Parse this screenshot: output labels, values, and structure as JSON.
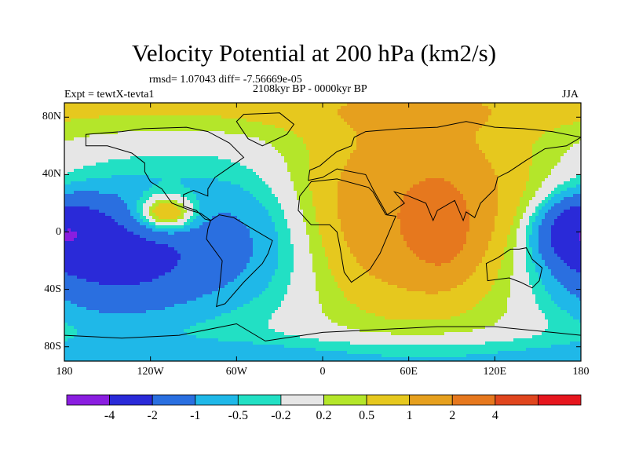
{
  "chart_data": {
    "type": "heatmap",
    "title": "Velocity Potential at 200 hPa (km2/s)",
    "stats_text": "rmsd= 1.07043 diff= -7.56669e-05",
    "period_text": "2108kyr BP - 0000kyr BP",
    "experiment_text": "Expt = tewtX-tevta1",
    "season": "JJA",
    "x_ticks": [
      "180",
      "120W",
      "60W",
      "0",
      "60E",
      "120E",
      "180"
    ],
    "x_tick_values": [
      -180,
      -120,
      -60,
      0,
      60,
      120,
      180
    ],
    "y_ticks": [
      "80N",
      "40N",
      "0",
      "40S",
      "80S"
    ],
    "y_tick_values": [
      80,
      40,
      0,
      -40,
      -80
    ],
    "xlim": [
      -180,
      180
    ],
    "ylim": [
      -90,
      90
    ],
    "contour_levels": [
      -4,
      -2,
      -1,
      -0.5,
      -0.2,
      0.2,
      0.5,
      1,
      2,
      4
    ],
    "colorbar_labels": [
      "-4",
      "-2",
      "-1",
      "-0.5",
      "-0.2",
      "0.2",
      "0.5",
      "1",
      "2",
      "4"
    ],
    "colors": [
      "#8a1ee0",
      "#2a2ad8",
      "#2a6fe0",
      "#1fb8e8",
      "#22e0c4",
      "#e6e6e6",
      "#b4e62a",
      "#e6c81e",
      "#e6a01e",
      "#e6781e",
      "#e0461e",
      "#e6161e"
    ],
    "field_centers": [
      {
        "name": "pacific-high-positive",
        "lon": -110,
        "lat": 12,
        "sx": 16,
        "sy": 10,
        "amp": 2.4
      },
      {
        "name": "asia-africa-positive",
        "lon": 65,
        "lat": 15,
        "sx": 58,
        "sy": 48,
        "amp": 1.9
      },
      {
        "name": "india-max",
        "lon": 82,
        "lat": 3,
        "sx": 14,
        "sy": 20,
        "amp": 1.6
      },
      {
        "name": "pacific-negative",
        "lon": -145,
        "lat": -15,
        "sx": 45,
        "sy": 30,
        "amp": -2.6
      },
      {
        "name": "atlantic-negative",
        "lon": -55,
        "lat": -5,
        "sx": 40,
        "sy": 35,
        "amp": -1.0
      },
      {
        "name": "dateline-negative",
        "lon": 178,
        "lat": 0,
        "sx": 18,
        "sy": 15,
        "amp": -2.6
      },
      {
        "name": "north-polar-positive",
        "lon": 0,
        "lat": 88,
        "sx": 400,
        "sy": 14,
        "amp": 0.6
      },
      {
        "name": "south-polar-negative",
        "lon": 0,
        "lat": -88,
        "sx": 400,
        "sy": 10,
        "amp": -0.7
      }
    ],
    "continents": [
      {
        "name": "north-america",
        "points": [
          [
            -165,
            68
          ],
          [
            -140,
            70
          ],
          [
            -125,
            72
          ],
          [
            -95,
            73
          ],
          [
            -80,
            70
          ],
          [
            -65,
            62
          ],
          [
            -55,
            52
          ],
          [
            -65,
            45
          ],
          [
            -75,
            38
          ],
          [
            -80,
            30
          ],
          [
            -80,
            25
          ],
          [
            -90,
            29
          ],
          [
            -97,
            26
          ],
          [
            -97,
            18
          ],
          [
            -88,
            15
          ],
          [
            -82,
            9
          ],
          [
            -78,
            8
          ],
          [
            -85,
            13
          ],
          [
            -92,
            15
          ],
          [
            -105,
            20
          ],
          [
            -112,
            30
          ],
          [
            -120,
            35
          ],
          [
            -124,
            42
          ],
          [
            -124,
            48
          ],
          [
            -133,
            55
          ],
          [
            -150,
            60
          ],
          [
            -165,
            60
          ]
        ]
      },
      {
        "name": "greenland",
        "points": [
          [
            -55,
            82
          ],
          [
            -30,
            83
          ],
          [
            -20,
            75
          ],
          [
            -25,
            68
          ],
          [
            -42,
            60
          ],
          [
            -52,
            65
          ],
          [
            -60,
            77
          ]
        ]
      },
      {
        "name": "south-america",
        "points": [
          [
            -78,
            8
          ],
          [
            -72,
            12
          ],
          [
            -62,
            10
          ],
          [
            -52,
            4
          ],
          [
            -35,
            -6
          ],
          [
            -38,
            -15
          ],
          [
            -42,
            -22
          ],
          [
            -55,
            -35
          ],
          [
            -68,
            -50
          ],
          [
            -74,
            -52
          ],
          [
            -72,
            -40
          ],
          [
            -70,
            -20
          ],
          [
            -81,
            -5
          ],
          [
            -80,
            2
          ]
        ]
      },
      {
        "name": "eurasia",
        "points": [
          [
            -10,
            36
          ],
          [
            -9,
            43
          ],
          [
            -2,
            46
          ],
          [
            5,
            52
          ],
          [
            10,
            56
          ],
          [
            20,
            60
          ],
          [
            22,
            66
          ],
          [
            30,
            70
          ],
          [
            55,
            72
          ],
          [
            80,
            73
          ],
          [
            100,
            77
          ],
          [
            120,
            73
          ],
          [
            140,
            72
          ],
          [
            160,
            70
          ],
          [
            180,
            66
          ],
          [
            170,
            60
          ],
          [
            155,
            58
          ],
          [
            142,
            50
          ],
          [
            130,
            42
          ],
          [
            122,
            38
          ],
          [
            120,
            30
          ],
          [
            110,
            20
          ],
          [
            106,
            10
          ],
          [
            100,
            14
          ],
          [
            98,
            8
          ],
          [
            92,
            22
          ],
          [
            80,
            15
          ],
          [
            77,
            8
          ],
          [
            72,
            20
          ],
          [
            60,
            25
          ],
          [
            50,
            28
          ],
          [
            57,
            20
          ],
          [
            45,
            12
          ],
          [
            35,
            30
          ],
          [
            30,
            40
          ],
          [
            10,
            44
          ],
          [
            0,
            38
          ]
        ]
      },
      {
        "name": "africa",
        "points": [
          [
            -17,
            15
          ],
          [
            -16,
            25
          ],
          [
            -8,
            35
          ],
          [
            10,
            37
          ],
          [
            32,
            31
          ],
          [
            35,
            28
          ],
          [
            44,
            12
          ],
          [
            51,
            11
          ],
          [
            40,
            -15
          ],
          [
            33,
            -26
          ],
          [
            20,
            -35
          ],
          [
            15,
            -28
          ],
          [
            12,
            -10
          ],
          [
            10,
            0
          ],
          [
            5,
            5
          ],
          [
            -8,
            5
          ]
        ]
      },
      {
        "name": "australia",
        "points": [
          [
            114,
            -22
          ],
          [
            122,
            -18
          ],
          [
            131,
            -12
          ],
          [
            137,
            -12
          ],
          [
            142,
            -11
          ],
          [
            146,
            -19
          ],
          [
            153,
            -25
          ],
          [
            151,
            -34
          ],
          [
            146,
            -39
          ],
          [
            138,
            -35
          ],
          [
            130,
            -32
          ],
          [
            115,
            -34
          ]
        ]
      },
      {
        "name": "antarctica",
        "points": [
          [
            -180,
            -72
          ],
          [
            -140,
            -74
          ],
          [
            -100,
            -72
          ],
          [
            -60,
            -64
          ],
          [
            -40,
            -76
          ],
          [
            0,
            -70
          ],
          [
            40,
            -68
          ],
          [
            80,
            -66
          ],
          [
            120,
            -66
          ],
          [
            160,
            -70
          ],
          [
            180,
            -72
          ],
          [
            180,
            -90
          ],
          [
            -180,
            -90
          ]
        ]
      }
    ]
  }
}
